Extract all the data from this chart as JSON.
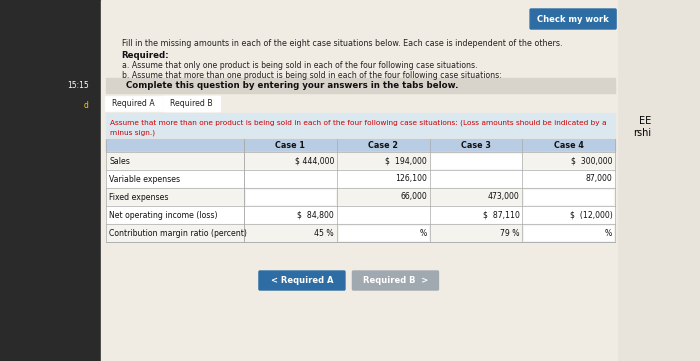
{
  "page_bg": "#e8e4dc",
  "content_bg": "#f0ece4",
  "sidebar_bg": "#2a2a2a",
  "light_blue_header": "#b8cce4",
  "tab_blue": "#2e6da4",
  "btn_blue": "#2e6da4",
  "btn_gray": "#a0a8b0",
  "red_text": "#cc0000",
  "complete_box_bg": "#d8d4cc",
  "instr_box_bg": "#dce8f0",
  "title_text": "Check my work",
  "intro_text": "Fill in the missing amounts in each of the eight case situations below. Each case is independent of the others.",
  "required_label": "Required:",
  "req_a": "a. Assume that only one product is being sold in each of the four following case situations.",
  "req_b": "b. Assume that more than one product is being sold in each of the four following case situations:",
  "complete_text": "Complete this question by entering your answers in the tabs below.",
  "tab_a_label": "Required A",
  "tab_b_label": "Required B",
  "instr_line1": "Assume that more than one product is being sold in each of the four following case situations: (Loss amounts should be indicated by a",
  "instr_line2": "minus sign.)",
  "rows": [
    "Sales",
    "Variable expenses",
    "Fixed expenses",
    "Net operating income (loss)",
    "Contribution margin ratio (percent)"
  ],
  "cases": [
    "Case 1",
    "Case 2",
    "Case 3",
    "Case 4"
  ],
  "table_data": {
    "Sales": {
      "Case 1": "$ 444,000",
      "Case 2": "$  194,000",
      "Case 3": "",
      "Case 4": "$  300,000"
    },
    "Variable expenses": {
      "Case 1": "",
      "Case 2": "126,100",
      "Case 3": "",
      "Case 4": "87,000"
    },
    "Fixed expenses": {
      "Case 1": "",
      "Case 2": "66,000",
      "Case 3": "473,000",
      "Case 4": ""
    },
    "Net operating income (loss)": {
      "Case 1": "$  84,800",
      "Case 2": "",
      "Case 3": "$  87,110",
      "Case 4": "$  (12,000)"
    },
    "Contribution margin ratio (percent)": {
      "Case 1": "45 %",
      "Case 2": "%",
      "Case 3": "79 %",
      "Case 4": "%"
    }
  },
  "input_cells": {
    "Sales": {
      "Case 1": false,
      "Case 2": false,
      "Case 3": true,
      "Case 4": false
    },
    "Variable expenses": {
      "Case 1": true,
      "Case 2": false,
      "Case 3": true,
      "Case 4": false
    },
    "Fixed expenses": {
      "Case 1": true,
      "Case 2": false,
      "Case 3": false,
      "Case 4": true
    },
    "Net operating income (loss)": {
      "Case 1": false,
      "Case 2": true,
      "Case 3": false,
      "Case 4": false
    },
    "Contribution margin ratio (percent)": {
      "Case 1": false,
      "Case 2": true,
      "Case 3": false,
      "Case 4": true
    }
  },
  "side_label_15_15": "15:15",
  "side_label_d": "d",
  "side_text_EE": "EE",
  "side_text_rshi": "rshi",
  "btn_nav_left": "< Required A",
  "btn_nav_right": "Required B  >"
}
